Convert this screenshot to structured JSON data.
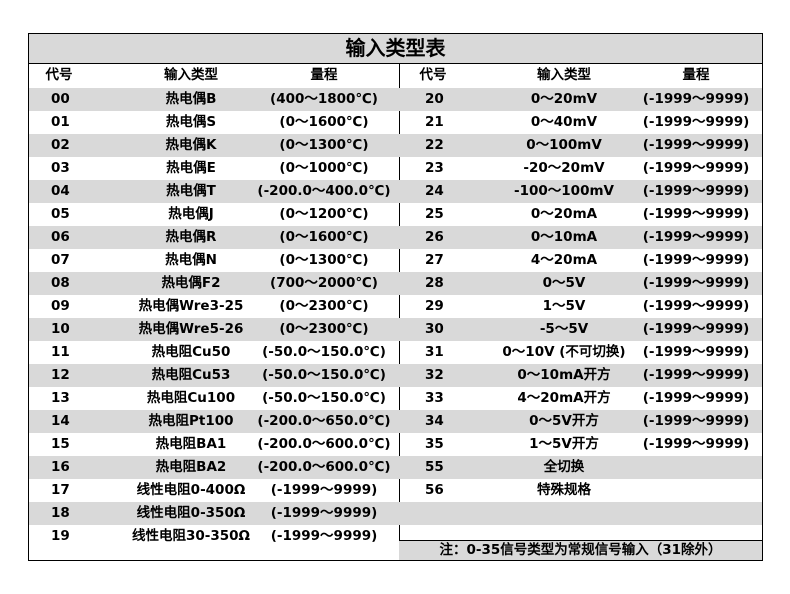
{
  "title": "输入类型表",
  "headers": {
    "code": "代号",
    "type": "输入类型",
    "range": "量程"
  },
  "left_rows": [
    {
      "code": "00",
      "type": "热电偶B",
      "range": "(400～1800℃)"
    },
    {
      "code": "01",
      "type": "热电偶S",
      "range": "(0～1600℃)"
    },
    {
      "code": "02",
      "type": "热电偶K",
      "range": "(0～1300℃)"
    },
    {
      "code": "03",
      "type": "热电偶E",
      "range": "(0～1000℃)"
    },
    {
      "code": "04",
      "type": "热电偶T",
      "range": "(-200.0～400.0℃)"
    },
    {
      "code": "05",
      "type": "热电偶J",
      "range": "(0～1200℃)"
    },
    {
      "code": "06",
      "type": "热电偶R",
      "range": "(0～1600℃)"
    },
    {
      "code": "07",
      "type": "热电偶N",
      "range": "(0～1300℃)"
    },
    {
      "code": "08",
      "type": "热电偶F2",
      "range": "(700～2000℃)"
    },
    {
      "code": "09",
      "type": "热电偶Wre3-25",
      "range": "(0～2300℃)"
    },
    {
      "code": "10",
      "type": "热电偶Wre5-26",
      "range": "(0～2300℃)"
    },
    {
      "code": "11",
      "type": "热电阻Cu50",
      "range": "(-50.0～150.0℃)"
    },
    {
      "code": "12",
      "type": "热电阻Cu53",
      "range": "(-50.0～150.0℃)"
    },
    {
      "code": "13",
      "type": "热电阻Cu100",
      "range": "(-50.0～150.0℃)"
    },
    {
      "code": "14",
      "type": "热电阻Pt100",
      "range": "(-200.0～650.0℃)"
    },
    {
      "code": "15",
      "type": "热电阻BA1",
      "range": "(-200.0～600.0℃)"
    },
    {
      "code": "16",
      "type": "热电阻BA2",
      "range": "(-200.0～600.0℃)"
    },
    {
      "code": "17",
      "type": "线性电阻0-400Ω",
      "range": "(-1999～9999)"
    },
    {
      "code": "18",
      "type": "线性电阻0-350Ω",
      "range": "(-1999～9999)"
    },
    {
      "code": "19",
      "type": "线性电阻30-350Ω",
      "range": "(-1999～9999)"
    }
  ],
  "right_rows": [
    {
      "code": "20",
      "type": "0～20mV",
      "range": "(-1999～9999)"
    },
    {
      "code": "21",
      "type": "0～40mV",
      "range": "(-1999～9999)"
    },
    {
      "code": "22",
      "type": "0～100mV",
      "range": "(-1999～9999)"
    },
    {
      "code": "23",
      "type": "-20～20mV",
      "range": "(-1999～9999)"
    },
    {
      "code": "24",
      "type": "-100～100mV",
      "range": "(-1999～9999)"
    },
    {
      "code": "25",
      "type": "0～20mA",
      "range": "(-1999～9999)"
    },
    {
      "code": "26",
      "type": "0～10mA",
      "range": "(-1999～9999)"
    },
    {
      "code": "27",
      "type": "4～20mA",
      "range": "(-1999～9999)"
    },
    {
      "code": "28",
      "type": "0～5V",
      "range": "(-1999～9999)"
    },
    {
      "code": "29",
      "type": "1～5V",
      "range": "(-1999～9999)"
    },
    {
      "code": "30",
      "type": "-5～5V",
      "range": "(-1999～9999)"
    },
    {
      "code": "31",
      "type": "0～10V (不可切换)",
      "range": "(-1999～9999)"
    },
    {
      "code": "32",
      "type": "0～10mA开方",
      "range": "(-1999～9999)"
    },
    {
      "code": "33",
      "type": "4～20mA开方",
      "range": "(-1999～9999)"
    },
    {
      "code": "34",
      "type": "0～5V开方",
      "range": "(-1999～9999)"
    },
    {
      "code": "35",
      "type": "1～5V开方",
      "range": "(-1999～9999)"
    },
    {
      "code": "55",
      "type": "全切换",
      "range": ""
    },
    {
      "code": "56",
      "type": "特殊规格",
      "range": ""
    },
    {
      "code": "",
      "type": "",
      "range": ""
    },
    {
      "code": "",
      "type": "",
      "range": ""
    }
  ],
  "note": "注：0-35信号类型为常规信号输入（31除外）",
  "colors": {
    "stripe": "#d9d9d9",
    "border": "#000000"
  }
}
